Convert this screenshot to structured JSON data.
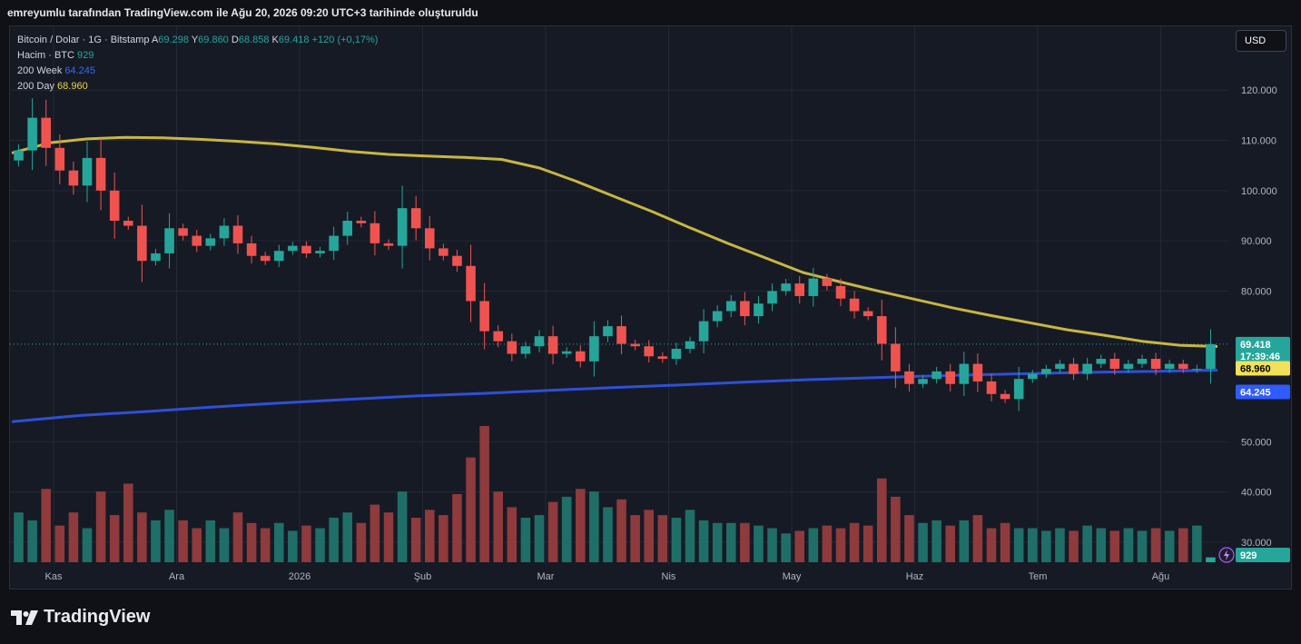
{
  "caption": "emreyumlu tarafından TradingView.com ile Ağu 20, 2026 09:20 UTC+3 tarihinde oluşturuldu",
  "currency_button": "USD",
  "brand": "TradingView",
  "legend": {
    "symbol": "Bitcoin / Dolar · 1G · Bitstamp",
    "a_label": "A",
    "a_value": "69.298",
    "y_label": "Y",
    "y_value": "69.860",
    "d_label": "D",
    "d_value": "68.858",
    "k_label": "K",
    "k_value": "69.418",
    "change": "+120 (+0,17%)",
    "volume_label": "Hacim · BTC",
    "volume_value": "929",
    "w200_label": "200 Week",
    "w200_value": "64.245",
    "d200_label": "200 Day",
    "d200_value": "68.960"
  },
  "colors": {
    "up": "#26a69a",
    "down": "#ef5350",
    "up_volume": "#1f6f68",
    "down_volume": "#8f3a3c",
    "ma200d": "#c8b640",
    "ma200w": "#2f4fd6",
    "grid": "#242836",
    "axis_text": "#b2b5be"
  },
  "chart_data": {
    "type": "candlestick",
    "title": "Bitcoin / Dolar · 1G · Bitstamp",
    "currency": "USD",
    "ylim": [
      26000,
      128000
    ],
    "y_ticks": [
      "120.000",
      "110.000",
      "100.000",
      "90.000",
      "80.000",
      "50.000",
      "40.000",
      "30.000"
    ],
    "x_ticks": [
      "Kas",
      "Ara",
      "2026",
      "Şub",
      "Mar",
      "Nis",
      "May",
      "Haz",
      "Tem",
      "Ağu"
    ],
    "price_labels": {
      "last_price": "69.418",
      "countdown": "17:39:46",
      "ma200d": "68.960",
      "ma200w": "64.245",
      "volume": "929"
    },
    "last_price": 69418,
    "series": [
      {
        "name": "Bitcoin / Dolar",
        "kind": "close",
        "values": [
          108000,
          114500,
          108500,
          104000,
          101000,
          106500,
          100000,
          94000,
          93000,
          86000,
          87500,
          92500,
          91000,
          89000,
          90500,
          93000,
          89500,
          87000,
          86000,
          88000,
          89000,
          87500,
          88000,
          91000,
          94000,
          93500,
          89500,
          89000,
          96500,
          92500,
          88500,
          87000,
          85000,
          78000,
          72000,
          70000,
          67500,
          69000,
          71000,
          67500,
          68000,
          66000,
          71000,
          73000,
          69500,
          69000,
          67000,
          66500,
          68500,
          70000,
          74000,
          76000,
          78000,
          75000,
          77500,
          80000,
          81500,
          79000,
          82500,
          81000,
          78500,
          76000,
          75000,
          69500,
          64000,
          61500,
          62500,
          64000,
          61500,
          65500,
          62000,
          59500,
          58500,
          62500,
          63500,
          64500,
          65500,
          63500,
          65500,
          66500,
          64500,
          65500,
          66500,
          64500,
          65500,
          64500,
          64500,
          69418
        ]
      },
      {
        "name": "Hacim · BTC",
        "kind": "volume",
        "values": [
          9500,
          8000,
          14000,
          7000,
          9500,
          6500,
          13500,
          9000,
          15000,
          9500,
          8000,
          10000,
          8000,
          6500,
          8000,
          6500,
          9500,
          7500,
          6500,
          7500,
          6000,
          7000,
          6500,
          8500,
          9500,
          7500,
          11000,
          9500,
          13500,
          8500,
          10000,
          9000,
          13000,
          20000,
          26000,
          13500,
          10500,
          8500,
          9000,
          11500,
          12500,
          14000,
          13500,
          10500,
          12000,
          9000,
          10000,
          9000,
          8500,
          10000,
          8000,
          7500,
          7500,
          7500,
          7000,
          6500,
          5500,
          6000,
          6500,
          7000,
          6500,
          7500,
          7000,
          16000,
          12500,
          9000,
          7500,
          8000,
          7000,
          8000,
          9000,
          6500,
          7500,
          6500,
          6500,
          6000,
          6500,
          6000,
          7000,
          6500,
          6000,
          6500,
          6000,
          6500,
          6000,
          6500,
          7000,
          929
        ]
      },
      {
        "name": "200 Day",
        "kind": "ma",
        "values": [
          107500,
          109500,
          110300,
          110600,
          110500,
          110200,
          109800,
          109300,
          108600,
          107800,
          107200,
          106900,
          106600,
          106200,
          104500,
          101800,
          98800,
          95800,
          92600,
          89500,
          86600,
          83700,
          81800,
          80000,
          78300,
          76600,
          75100,
          73700,
          72300,
          71200,
          70000,
          69200,
          68960
        ]
      },
      {
        "name": "200 Week",
        "kind": "ma",
        "values": [
          54000,
          55200,
          56000,
          56900,
          57700,
          58400,
          59100,
          59600,
          60200,
          60800,
          61300,
          61900,
          62400,
          62800,
          63200,
          63500,
          63800,
          64000,
          64245
        ]
      }
    ]
  }
}
